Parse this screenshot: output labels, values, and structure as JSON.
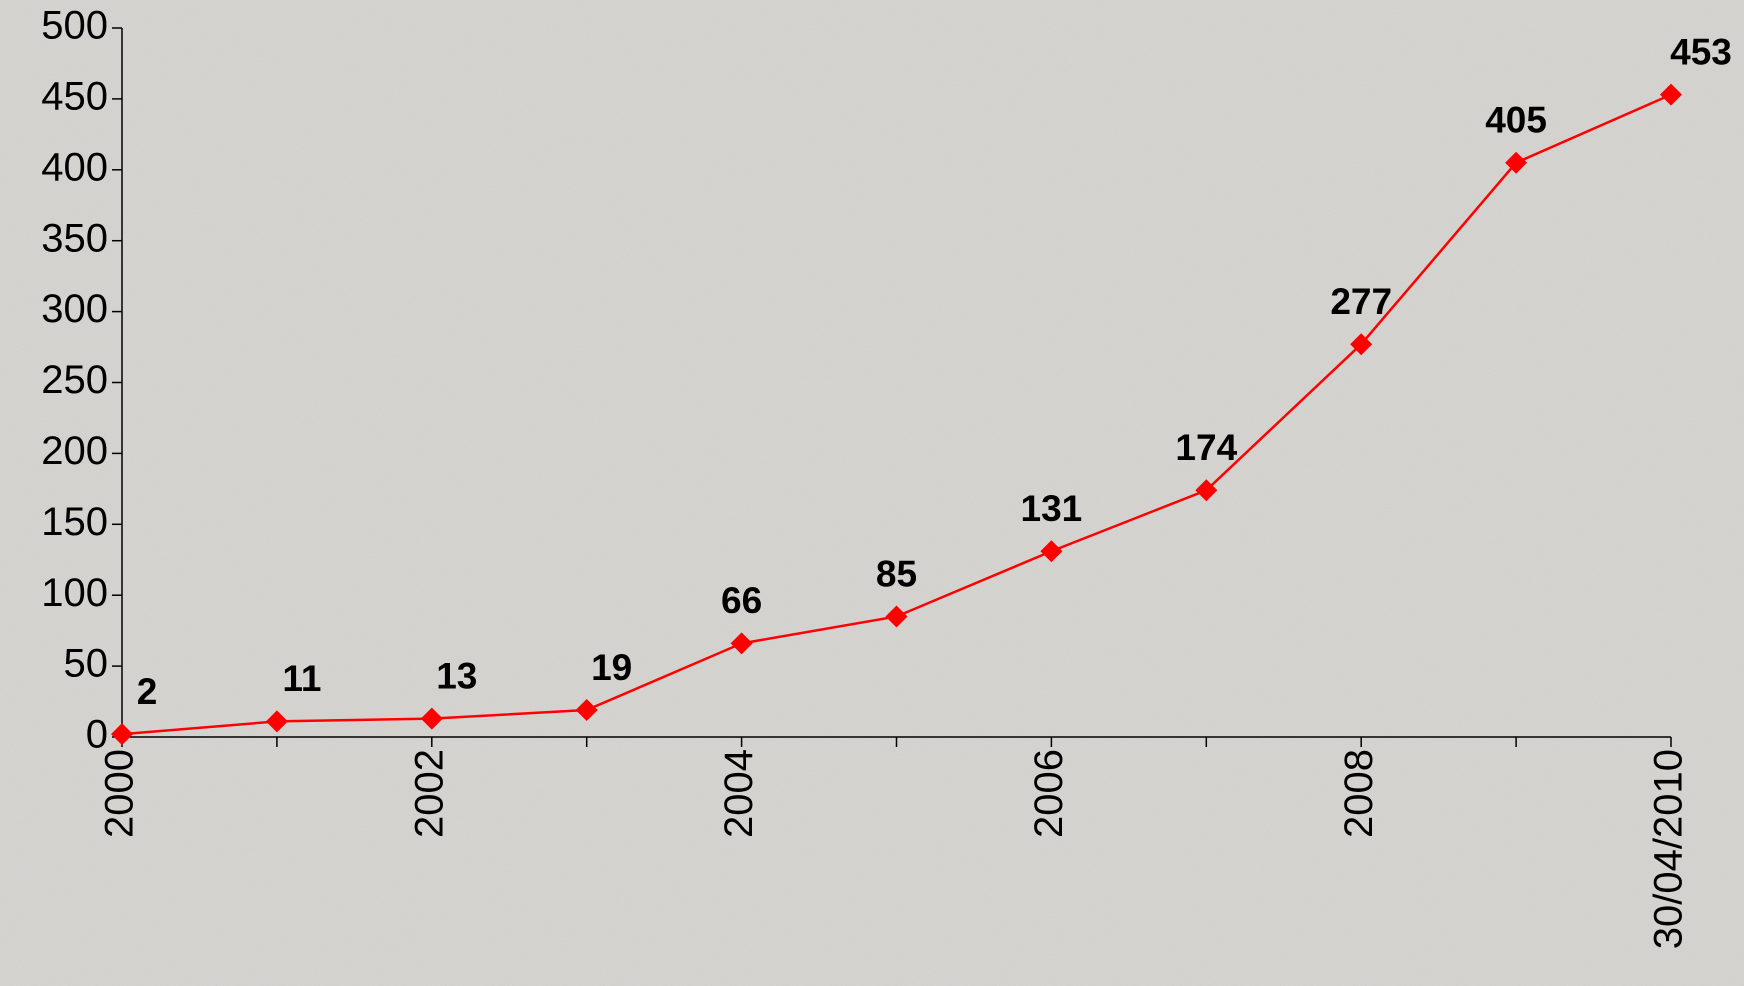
{
  "chart_data": {
    "type": "line",
    "categories": [
      "2000",
      null,
      "2002",
      null,
      "2004",
      null,
      "2006",
      null,
      "2008",
      null,
      "30/04/2010"
    ],
    "series": [
      {
        "name": null,
        "color": "#ff0000",
        "values": [
          2,
          11,
          13,
          19,
          66,
          85,
          131,
          174,
          277,
          405,
          453
        ]
      }
    ],
    "ylim": [
      0,
      500
    ],
    "yticks": [
      0,
      50,
      100,
      150,
      200,
      250,
      300,
      350,
      400,
      450,
      500
    ],
    "grid": false,
    "legend": false
  }
}
